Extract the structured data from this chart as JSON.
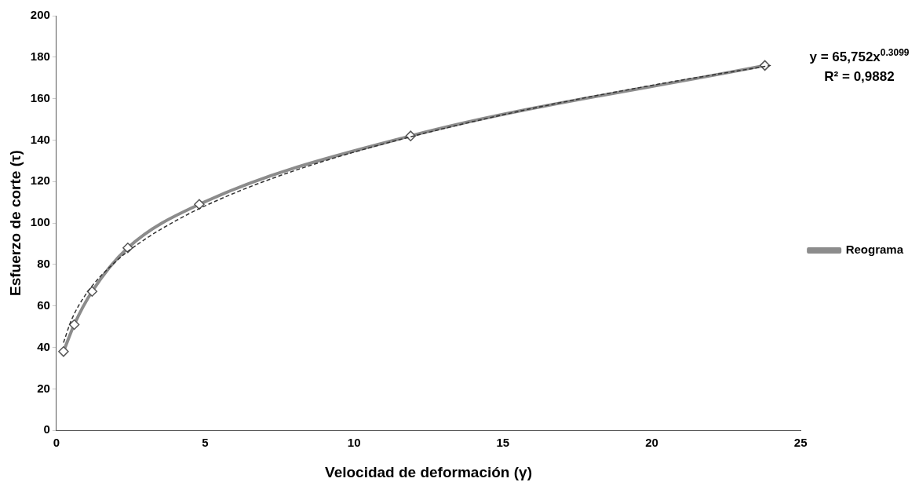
{
  "chart_data": {
    "type": "line",
    "xlabel": "Velocidad de deformación (γ)",
    "ylabel": "Esfuerzo de corte (τ)",
    "x": [
      0.24,
      0.6,
      1.2,
      2.4,
      4.8,
      11.9,
      23.8
    ],
    "series": [
      {
        "name": "Reograma",
        "color": "#8c8c8c",
        "values": [
          38,
          51,
          67,
          88,
          109,
          142,
          176
        ],
        "marker": "diamond",
        "line_style": "solid"
      },
      {
        "type": "line",
        "color": "#333333",
        "x": [
          0.24,
          0.5,
          1,
          2,
          3,
          4,
          5,
          7,
          10,
          15,
          20,
          24
        ],
        "values": [
          42.3,
          53.0,
          65.8,
          81.5,
          92.4,
          101.0,
          108.3,
          120.2,
          134.2,
          152.2,
          166.4,
          176.0
        ],
        "marker": "none",
        "line_style": "dashed"
      }
    ],
    "xlim": [
      0,
      25
    ],
    "xticks": [
      0,
      5,
      10,
      15,
      20,
      25
    ],
    "ylim": [
      0,
      200
    ],
    "yticks": [
      0,
      20,
      40,
      60,
      80,
      100,
      120,
      140,
      160,
      180,
      200
    ],
    "grid": false,
    "legend": "right",
    "annotations": [
      "y = 65,752x$^{0.3099}$",
      "R² = 0,9882"
    ]
  }
}
